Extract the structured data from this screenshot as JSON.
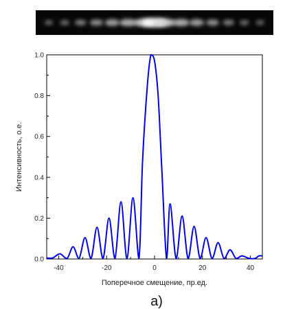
{
  "chart_data": {
    "type": "line",
    "title": "",
    "xlabel": "Поперечное смещение, пр.ед.",
    "ylabel": "Интенсивность, о.е.",
    "xlim": [
      -45,
      45
    ],
    "ylim": [
      0,
      1.0
    ],
    "xticks": [
      -40,
      -20,
      0,
      20,
      40
    ],
    "xtick_labels": [
      "-40",
      "-20",
      "0",
      "20",
      "40"
    ],
    "yticks": [
      0.0,
      0.2,
      0.4,
      0.6,
      0.8,
      1.0
    ],
    "ytick_labels": [
      "0.0",
      "0.2",
      "0.4",
      "0.6",
      "0.8",
      "1.0"
    ],
    "panel_label": "а)",
    "series": [
      {
        "color": "#0000e6",
        "x": [
          -45,
          -42.5,
          -39.5,
          -36.5,
          -34,
          -31.5,
          -29,
          -26.5,
          -24,
          -21.5,
          -19,
          -16.5,
          -14,
          -11.5,
          -9,
          -6.5,
          -5,
          -3,
          -1.5,
          0,
          1.5,
          3,
          5,
          6.5,
          9,
          11.5,
          14,
          16.5,
          19,
          21.5,
          24,
          26.5,
          29,
          31.5,
          34,
          36.5,
          39.5,
          42,
          43.5,
          45
        ],
        "y": [
          0.005,
          0.005,
          0.025,
          0.003,
          0.06,
          0.003,
          0.105,
          0.003,
          0.155,
          0.003,
          0.2,
          0.003,
          0.28,
          0.003,
          0.3,
          0.003,
          0.48,
          0.85,
          1.0,
          0.97,
          0.8,
          0.45,
          0.003,
          0.27,
          0.003,
          0.21,
          0.003,
          0.16,
          0.003,
          0.105,
          0.003,
          0.08,
          0.003,
          0.045,
          0.003,
          0.015,
          0.003,
          0.003,
          0.015,
          0.015
        ]
      }
    ]
  },
  "strip": {
    "label": "diffraction pattern image",
    "spot_positions": [
      -40,
      -34,
      -28,
      -22,
      -16,
      -10,
      -4,
      0,
      4,
      10,
      16,
      22,
      28,
      34,
      40
    ],
    "spot_intensity": [
      0.15,
      0.2,
      0.3,
      0.4,
      0.5,
      0.6,
      0.75,
      1.0,
      0.75,
      0.6,
      0.5,
      0.4,
      0.3,
      0.2,
      0.15
    ]
  }
}
